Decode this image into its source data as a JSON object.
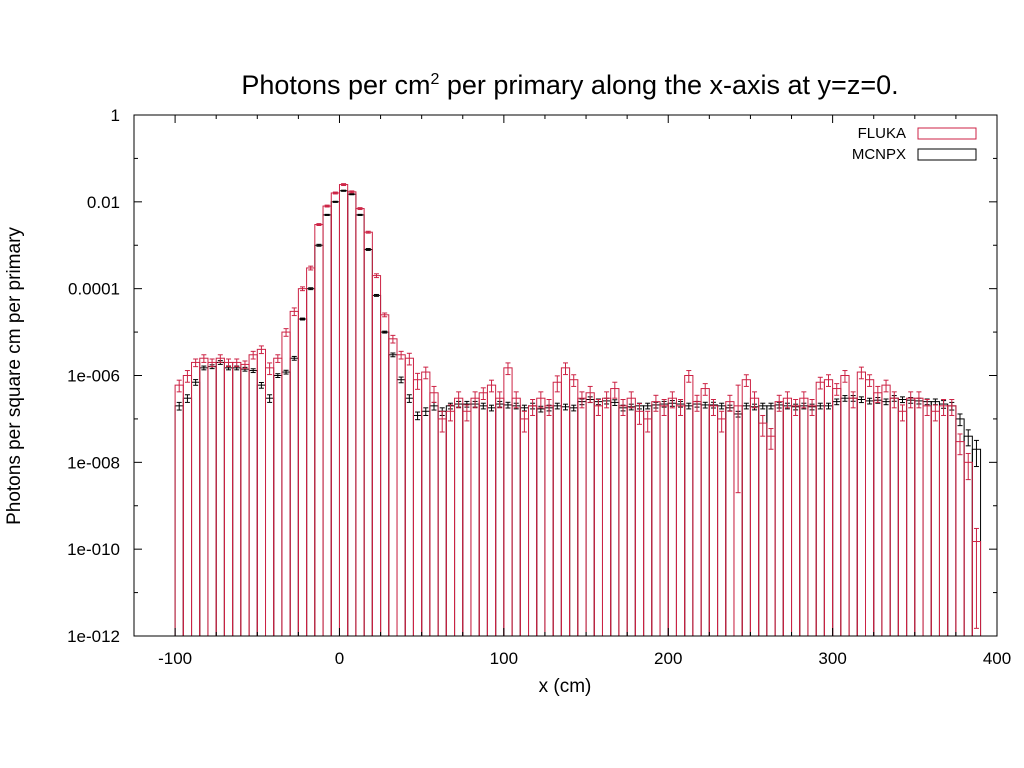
{
  "title": {
    "prefix": "Photons per cm",
    "superscript": "2",
    "suffix": " per primary along the x-axis at y=z=0."
  },
  "chart_data": {
    "type": "bar",
    "xlabel": "x (cm)",
    "ylabel": "Photons per square cm per primary",
    "xlim": [
      -125,
      400
    ],
    "ylim": [
      1e-12,
      1
    ],
    "yscale": "log",
    "bin_width": 5,
    "x_ticks": [
      -100,
      0,
      100,
      200,
      300,
      400
    ],
    "x_tick_labels": [
      "-100",
      "0",
      "100",
      "200",
      "300",
      "400"
    ],
    "y_ticks": [
      1e-12,
      1e-10,
      1e-08,
      1e-06,
      0.0001,
      0.01,
      1
    ],
    "y_tick_labels": [
      "1e-012",
      "1e-010",
      "1e-008",
      "1e-006",
      "0.0001",
      "0.01",
      "1"
    ],
    "legend_position": "top-right",
    "grid": false,
    "x_bin_starts": [
      -100,
      -95,
      -90,
      -85,
      -80,
      -75,
      -70,
      -65,
      -60,
      -55,
      -50,
      -45,
      -40,
      -35,
      -30,
      -25,
      -20,
      -15,
      -10,
      -5,
      0,
      5,
      10,
      15,
      20,
      25,
      30,
      35,
      40,
      45,
      50,
      55,
      60,
      65,
      70,
      75,
      80,
      85,
      90,
      95,
      100,
      105,
      110,
      115,
      120,
      125,
      130,
      135,
      140,
      145,
      150,
      155,
      160,
      165,
      170,
      175,
      180,
      185,
      190,
      195,
      200,
      205,
      210,
      215,
      220,
      225,
      230,
      235,
      240,
      245,
      250,
      255,
      260,
      265,
      270,
      275,
      280,
      285,
      290,
      295,
      300,
      305,
      310,
      315,
      320,
      325,
      330,
      335,
      340,
      345,
      350,
      355,
      360,
      365,
      370,
      375,
      380,
      385
    ],
    "series": [
      {
        "name": "MCNPX",
        "color": "#000000",
        "values": [
          2e-07,
          3e-07,
          7e-07,
          1.5e-06,
          1.6e-06,
          2e-06,
          1.5e-06,
          1.5e-06,
          1.4e-06,
          1.3e-06,
          6e-07,
          3e-07,
          1e-06,
          1.2e-06,
          2.5e-06,
          2e-05,
          0.0001,
          0.001,
          0.005,
          0.01,
          0.018,
          0.015,
          0.005,
          0.0008,
          7e-05,
          1e-05,
          3e-06,
          8e-07,
          3e-07,
          1.2e-07,
          1.5e-07,
          2e-07,
          1.5e-07,
          2e-07,
          2.2e-07,
          2.2e-07,
          2.2e-07,
          2e-07,
          1.8e-07,
          2.2e-07,
          2.1e-07,
          2e-07,
          1.8e-07,
          2e-07,
          1.7e-07,
          1.8e-07,
          2e-07,
          1.9e-07,
          1.8e-07,
          2.5e-07,
          2.8e-07,
          2.5e-07,
          2.6e-07,
          2.4e-07,
          1.8e-07,
          1.9e-07,
          2e-07,
          2e-07,
          2.1e-07,
          2.2e-07,
          2.3e-07,
          2.2e-07,
          2e-07,
          2.2e-07,
          2.1e-07,
          2.1e-07,
          2e-07,
          1.8e-07,
          1.3e-07,
          2e-07,
          1.9e-07,
          2e-07,
          2e-07,
          2.1e-07,
          2e-07,
          1.9e-07,
          2e-07,
          1.9e-07,
          2e-07,
          2e-07,
          2.5e-07,
          3e-07,
          3e-07,
          2.8e-07,
          2.6e-07,
          2.7e-07,
          2.5e-07,
          3e-07,
          2.8e-07,
          2.7e-07,
          2.6e-07,
          2.5e-07,
          2.5e-07,
          2.2e-07,
          2e-07,
          1e-07,
          4e-08,
          2e-08
        ],
        "errors": [
          0.2,
          0.2,
          0.15,
          0.1,
          0.1,
          0.1,
          0.1,
          0.1,
          0.1,
          0.1,
          0.15,
          0.2,
          0.1,
          0.1,
          0.1,
          0.05,
          0.05,
          0.05,
          0.03,
          0.03,
          0.03,
          0.03,
          0.03,
          0.05,
          0.05,
          0.05,
          0.1,
          0.15,
          0.2,
          0.2,
          0.2,
          0.2,
          0.2,
          0.15,
          0.15,
          0.15,
          0.15,
          0.15,
          0.15,
          0.15,
          0.15,
          0.15,
          0.15,
          0.15,
          0.15,
          0.15,
          0.15,
          0.15,
          0.15,
          0.15,
          0.15,
          0.15,
          0.15,
          0.15,
          0.15,
          0.15,
          0.15,
          0.15,
          0.15,
          0.15,
          0.15,
          0.15,
          0.15,
          0.15,
          0.15,
          0.15,
          0.15,
          0.15,
          0.15,
          0.15,
          0.15,
          0.15,
          0.15,
          0.15,
          0.15,
          0.15,
          0.15,
          0.15,
          0.15,
          0.15,
          0.15,
          0.15,
          0.15,
          0.15,
          0.15,
          0.15,
          0.15,
          0.15,
          0.15,
          0.15,
          0.15,
          0.15,
          0.15,
          0.2,
          0.2,
          0.3,
          0.4,
          0.6
        ]
      },
      {
        "name": "FLUKA",
        "color": "#cc2244",
        "values": [
          6e-07,
          1e-06,
          2e-06,
          2.5e-06,
          2e-06,
          2.5e-06,
          2e-06,
          2e-06,
          1.8e-06,
          3e-06,
          4e-06,
          1.5e-06,
          2.5e-06,
          1e-05,
          3e-05,
          0.0001,
          0.0003,
          0.003,
          0.008,
          0.016,
          0.025,
          0.017,
          0.007,
          0.002,
          0.0002,
          2.5e-05,
          7e-06,
          3e-06,
          2.5e-06,
          8e-07,
          1.2e-06,
          4e-07,
          1e-07,
          1.5e-07,
          3e-07,
          1.5e-07,
          3e-07,
          4e-07,
          6e-07,
          3e-07,
          1.5e-06,
          3e-07,
          1e-07,
          2e-07,
          3e-07,
          2e-07,
          7e-07,
          1.5e-06,
          8e-07,
          3e-07,
          4e-07,
          2e-07,
          3e-07,
          5e-07,
          2e-07,
          3e-07,
          1.5e-07,
          1e-07,
          2.5e-07,
          2e-07,
          3e-07,
          2e-07,
          1e-06,
          2.5e-07,
          5e-07,
          2e-07,
          1e-07,
          2.5e-07,
          2e-07,
          8e-07,
          3e-07,
          8e-08,
          4e-08,
          2.5e-07,
          3e-07,
          2e-07,
          3e-07,
          2e-07,
          7e-07,
          8e-07,
          5e-07,
          1e-06,
          3e-07,
          1.2e-06,
          8e-07,
          4e-07,
          6e-07,
          3e-07,
          1.5e-07,
          3e-07,
          3e-07,
          2e-07,
          1.5e-07,
          2e-07,
          2e-07,
          3e-08,
          1e-08,
          1.5e-10
        ],
        "errors": [
          0.3,
          0.3,
          0.2,
          0.2,
          0.2,
          0.2,
          0.2,
          0.2,
          0.2,
          0.2,
          0.2,
          0.3,
          0.2,
          0.2,
          0.2,
          0.1,
          0.1,
          0.05,
          0.05,
          0.05,
          0.05,
          0.05,
          0.05,
          0.05,
          0.1,
          0.1,
          0.2,
          0.2,
          0.3,
          0.4,
          0.3,
          0.4,
          0.5,
          0.4,
          0.4,
          0.4,
          0.4,
          0.3,
          0.3,
          0.4,
          0.3,
          0.4,
          0.5,
          0.4,
          0.4,
          0.4,
          0.4,
          0.3,
          0.3,
          0.4,
          0.4,
          0.4,
          0.4,
          0.4,
          0.4,
          0.4,
          0.5,
          0.5,
          0.4,
          0.4,
          0.4,
          0.4,
          0.3,
          0.4,
          0.3,
          0.4,
          0.5,
          0.4,
          2.0,
          0.3,
          0.4,
          0.5,
          0.5,
          0.4,
          0.4,
          0.4,
          0.4,
          0.4,
          0.3,
          0.3,
          0.3,
          0.3,
          0.4,
          0.3,
          0.3,
          0.4,
          0.3,
          0.4,
          0.4,
          0.4,
          0.4,
          0.4,
          0.4,
          0.4,
          0.4,
          0.5,
          0.6,
          1.0
        ]
      }
    ]
  }
}
